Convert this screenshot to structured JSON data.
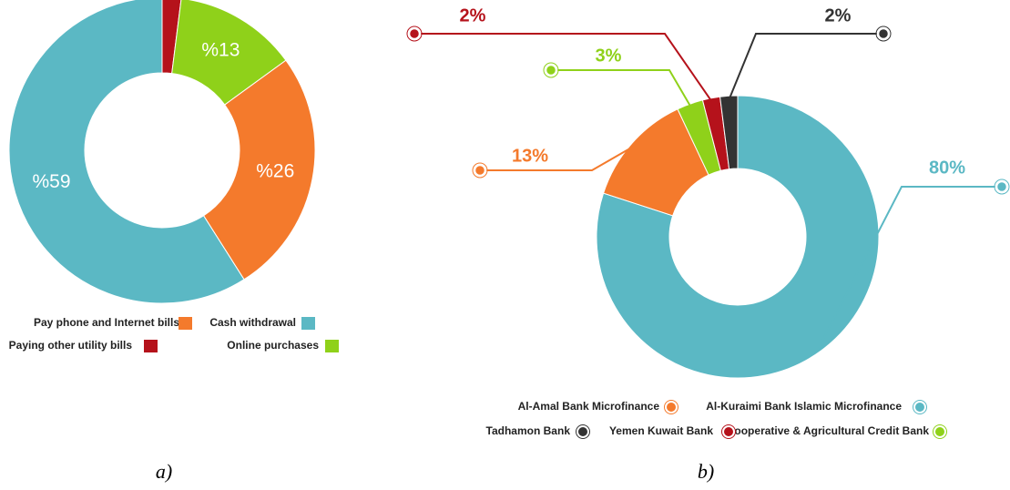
{
  "chart_data": [
    {
      "type": "pie",
      "caption": "a)",
      "categories": [
        "Paying other utility bills",
        "Online purchases",
        "Pay phone and Internet bills",
        "Cash withdrawal"
      ],
      "values": [
        2,
        13,
        26,
        59
      ],
      "value_labels": [
        null,
        "%13",
        "%26",
        "%59"
      ],
      "colors": [
        "#b5121b",
        "#8fd11a",
        "#f47a2c",
        "#5bb8c4"
      ]
    },
    {
      "type": "pie",
      "caption": "b)",
      "categories": [
        "Al-Kuraimi Bank Islamic Microfinance",
        "Al-Amal Bank  Microfinance",
        "Cooperative & Agricultural  Credit Bank",
        "Yemen Kuwait Bank",
        "Tadhamon Bank"
      ],
      "values": [
        80,
        13,
        3,
        2,
        2
      ],
      "value_labels": [
        "80%",
        "13%",
        "3%",
        "2%",
        "2%"
      ],
      "colors": [
        "#5bb8c4",
        "#f47a2c",
        "#8fd11a",
        "#b5121b",
        "#333333"
      ]
    }
  ]
}
